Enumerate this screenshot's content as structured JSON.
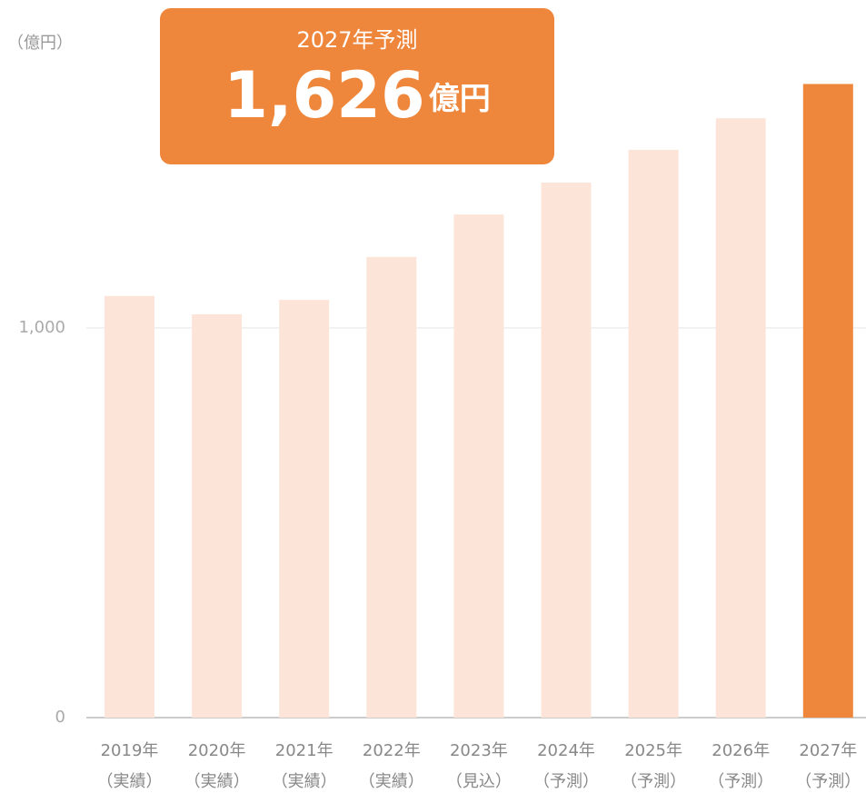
{
  "chart_data": {
    "type": "bar",
    "unit_label": "（億円）",
    "categories": [
      "2019年",
      "2020年",
      "2021年",
      "2022年",
      "2023年",
      "2024年",
      "2025年",
      "2026年",
      "2027年"
    ],
    "category_notes": [
      "（実績）",
      "（実績）",
      "（実績）",
      "（実績）",
      "（見込）",
      "（予測）",
      "（予測）",
      "（予測）",
      "（予測）"
    ],
    "values": [
      1082,
      1035,
      1072,
      1182,
      1291,
      1373,
      1457,
      1538,
      1626
    ],
    "value_labels": [
      null,
      null,
      null,
      null,
      null,
      null,
      null,
      null,
      "1,626"
    ],
    "callout": {
      "title": "2027年予測",
      "unit": "億円"
    },
    "colors": [
      "#fce5d8",
      "#fce5d8",
      "#fce5d8",
      "#fce5d8",
      "#fce5d8",
      "#fce5d8",
      "#fce5d8",
      "#fce5d8",
      "#ee863b"
    ],
    "ylim": [
      0,
      1800
    ],
    "yticks": [
      0,
      {
        "value": 1000,
        "label": "1,000"
      }
    ],
    "grid": true
  }
}
